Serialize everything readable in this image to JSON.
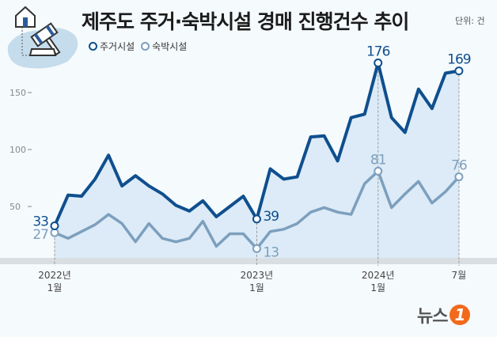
{
  "header": {
    "title": "제주도 주거·숙박시설 경매 진행건수 추이",
    "unit": "단위: 건"
  },
  "logo": {
    "text": "뉴스",
    "badge": "1"
  },
  "chart_data": {
    "type": "area",
    "title": "제주도 주거·숙박시설 경매 진행건수 추이",
    "unit": "단위: 건",
    "x": [
      "2022-01",
      "2022-02",
      "2022-03",
      "2022-04",
      "2022-05",
      "2022-06",
      "2022-07",
      "2022-08",
      "2022-09",
      "2022-10",
      "2022-11",
      "2022-12",
      "p13",
      "p14",
      "p15",
      "2023-01",
      "p17",
      "p18",
      "p19",
      "p20",
      "p21",
      "p22",
      "p23",
      "p24",
      "2024-01",
      "2024-02",
      "2024-03",
      "2024-04",
      "2024-05",
      "2024-06",
      "2024-07"
    ],
    "x_ticks": [
      {
        "index": 0,
        "line1": "2022년",
        "line2": "1월"
      },
      {
        "index": 15,
        "line1": "2023년",
        "line2": "1월"
      },
      {
        "index": 24,
        "line1": "2024년",
        "line2": "1월"
      },
      {
        "index": 30,
        "line1": "7월",
        "line2": ""
      }
    ],
    "y_ticks": [
      50,
      100,
      150
    ],
    "ylim": [
      0,
      180
    ],
    "legend_position": "top-left",
    "series": [
      {
        "name": "주거시설",
        "color": "#0f4f8e",
        "values": [
          33,
          60,
          59,
          74,
          95,
          68,
          77,
          68,
          61,
          51,
          46,
          55,
          41,
          50,
          59,
          39,
          83,
          74,
          76,
          111,
          112,
          90,
          128,
          131,
          176,
          128,
          115,
          153,
          136,
          167,
          169
        ],
        "labels": [
          {
            "index": 0,
            "text": "33"
          },
          {
            "index": 15,
            "text": "39"
          },
          {
            "index": 24,
            "text": "176"
          },
          {
            "index": 30,
            "text": "169"
          }
        ]
      },
      {
        "name": "숙박시설",
        "color": "#7d9fbd",
        "values": [
          27,
          22,
          28,
          34,
          43,
          35,
          19,
          35,
          22,
          19,
          22,
          37,
          15,
          26,
          26,
          13,
          28,
          30,
          35,
          45,
          49,
          45,
          43,
          70,
          81,
          49,
          61,
          72,
          53,
          63,
          76
        ],
        "labels": [
          {
            "index": 0,
            "text": "27"
          },
          {
            "index": 15,
            "text": "13"
          },
          {
            "index": 24,
            "text": "81"
          },
          {
            "index": 30,
            "text": "76"
          }
        ]
      }
    ]
  }
}
